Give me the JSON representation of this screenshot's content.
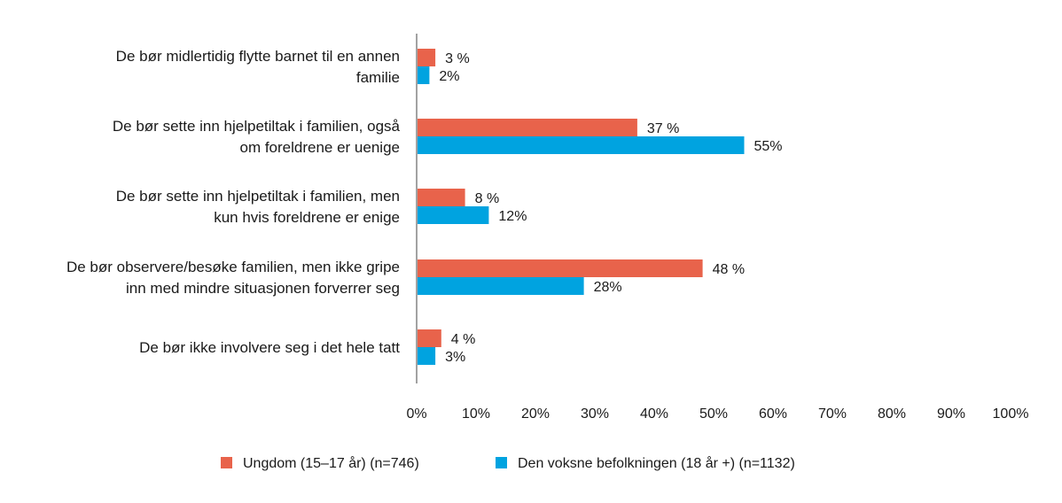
{
  "chart_data": {
    "type": "bar",
    "orientation": "horizontal",
    "title": "",
    "xlabel": "",
    "ylabel": "",
    "xlim": [
      0,
      100
    ],
    "grid": false,
    "legend_position": "bottom",
    "categories": [
      [
        "De bør midlertidig flytte barnet til en annen",
        "familie"
      ],
      [
        "De bør sette inn hjelpetiltak i familien, også",
        "om foreldrene er uenige"
      ],
      [
        "De bør sette inn hjelpetiltak i familien, men",
        "kun hvis foreldrene er enige"
      ],
      [
        "De bør observere/besøke familien, men ikke gripe",
        "inn med mindre situasjonen forverrer seg"
      ],
      [
        "De bør ikke involvere seg i det hele tatt"
      ]
    ],
    "series": [
      {
        "name": "Ungdom (15–17 år) (n=746)",
        "color": "#e8634b",
        "values": [
          3,
          37,
          8,
          48,
          4
        ],
        "labels": [
          "3 %",
          "37 %",
          "8 %",
          "48 %",
          "4 %"
        ]
      },
      {
        "name": "Den voksne befolkningen (18 år +) (n=1132)",
        "color": "#00a3e0",
        "values": [
          2,
          55,
          12,
          28,
          3
        ],
        "labels": [
          "2%",
          "55%",
          "12%",
          "28%",
          "3%"
        ]
      }
    ],
    "x_ticks": [
      "0%",
      "10%",
      "20%",
      "30%",
      "40%",
      "50%",
      "60%",
      "70%",
      "80%",
      "90%",
      "100%"
    ],
    "x_tick_values": [
      0,
      10,
      20,
      30,
      40,
      50,
      60,
      70,
      80,
      90,
      100
    ]
  }
}
